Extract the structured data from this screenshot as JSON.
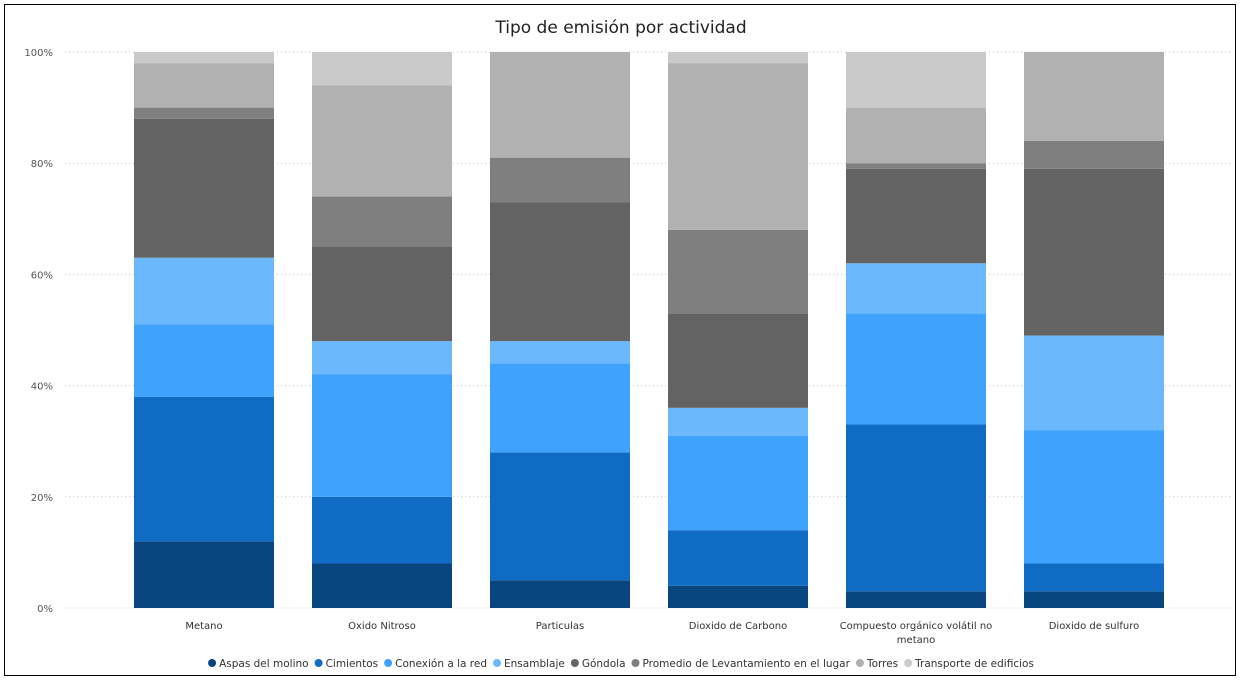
{
  "chart_data": {
    "type": "bar",
    "stacked": true,
    "normalized": true,
    "title": "Tipo de emisión por actividad",
    "xlabel": "",
    "ylabel": "",
    "ylim": [
      0,
      100
    ],
    "yticks": [
      "0%",
      "20%",
      "40%",
      "60%",
      "80%",
      "100%"
    ],
    "grid": true,
    "legend_position": "bottom",
    "categories": [
      "Metano",
      "Oxido Nitroso",
      "Particulas",
      "Dioxido de Carbono",
      "Compuesto orgánico volátil no metano",
      "Dioxido de sulfuro"
    ],
    "series": [
      {
        "name": "Aspas del molino",
        "color": "#08457e",
        "values": [
          12,
          8,
          5,
          4,
          3,
          3
        ]
      },
      {
        "name": "Cimientos",
        "color": "#0f6bc3",
        "values": [
          26,
          12,
          23,
          10,
          30,
          5
        ]
      },
      {
        "name": "Conexión a la red",
        "color": "#3fa2fc",
        "values": [
          13,
          22,
          16,
          17,
          20,
          24
        ]
      },
      {
        "name": "Ensamblaje",
        "color": "#6cb8fd",
        "values": [
          12,
          6,
          4,
          5,
          9,
          17
        ]
      },
      {
        "name": "Góndola",
        "color": "#636363",
        "values": [
          25,
          17,
          25,
          17,
          17,
          30
        ]
      },
      {
        "name": "Promedio de Levantamiento en el lugar",
        "color": "#7f7f7f",
        "values": [
          2,
          9,
          8,
          15,
          1,
          5
        ]
      },
      {
        "name": "Torres",
        "color": "#b1b1b1",
        "values": [
          8,
          20,
          19,
          30,
          10,
          16
        ]
      },
      {
        "name": "Transporte de edificios",
        "color": "#cacaca",
        "values": [
          2,
          6,
          0,
          2,
          10,
          0
        ]
      }
    ]
  }
}
